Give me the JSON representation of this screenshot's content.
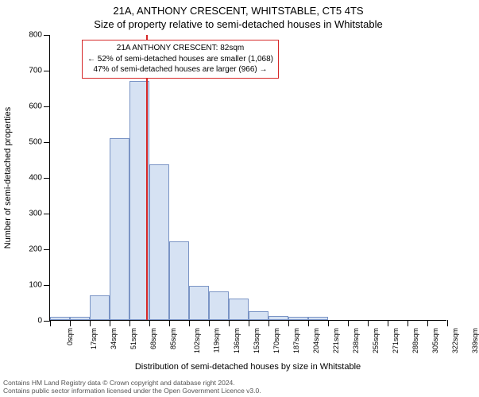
{
  "title_line1": "21A, ANTHONY CRESCENT, WHITSTABLE, CT5 4TS",
  "title_line2": "Size of property relative to semi-detached houses in Whitstable",
  "ylabel": "Number of semi-detached properties",
  "xlabel": "Distribution of semi-detached houses by size in Whitstable",
  "chart": {
    "type": "histogram",
    "ylim": [
      0,
      800
    ],
    "ytick_step": 100,
    "xlim_bins": 20,
    "bin_width_sqm": 17,
    "bar_fill": "#d6e2f3",
    "bar_stroke": "#7a94c5",
    "marker_color": "#d62728",
    "background": "#ffffff",
    "xticks": [
      "0sqm",
      "17sqm",
      "34sqm",
      "51sqm",
      "68sqm",
      "85sqm",
      "102sqm",
      "119sqm",
      "136sqm",
      "153sqm",
      "170sqm",
      "187sqm",
      "204sqm",
      "221sqm",
      "238sqm",
      "255sqm",
      "271sqm",
      "288sqm",
      "305sqm",
      "322sqm",
      "339sqm"
    ],
    "values": [
      8,
      10,
      70,
      510,
      670,
      435,
      220,
      95,
      80,
      60,
      25,
      12,
      10,
      8,
      0,
      0,
      0,
      0,
      0,
      0
    ],
    "marker_sqm": 82
  },
  "annotation": {
    "line1": "21A ANTHONY CRESCENT: 82sqm",
    "line2": "← 52% of semi-detached houses are smaller (1,068)",
    "line3": "47% of semi-detached houses are larger (966) →"
  },
  "footer": {
    "line1": "Contains HM Land Registry data © Crown copyright and database right 2024.",
    "line2": "Contains public sector information licensed under the Open Government Licence v3.0."
  }
}
